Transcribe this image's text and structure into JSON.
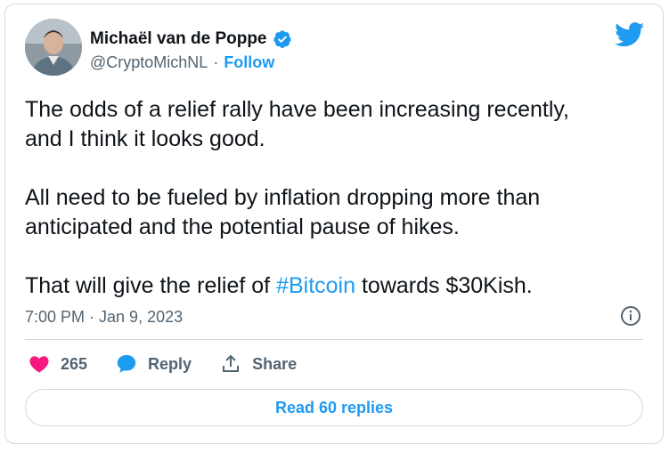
{
  "author": {
    "name": "Michaël van de Poppe",
    "handle": "@CryptoMichNL",
    "separator": "·",
    "follow_label": "Follow"
  },
  "tweet": {
    "line1": "The odds of a relief rally have been increasing recently,",
    "line2": "and I think it looks good.",
    "para2_line1": "All need to be fueled by inflation dropping more than",
    "para2_line2": "anticipated and the potential pause of hikes.",
    "para3_before": "That will give the relief of ",
    "para3_hashtag": "#Bitcoin",
    "para3_after": " towards $30Kish."
  },
  "timestamp": "7:00 PM · Jan 9, 2023",
  "actions": {
    "likes": "265",
    "reply_label": "Reply",
    "share_label": "Share"
  },
  "read_replies_label": "Read 60 replies",
  "colors": {
    "accent": "#1d9bf0",
    "like": "#f91880",
    "muted": "#536471",
    "border": "#cfd9de"
  },
  "icons": [
    "avatar",
    "verified-badge-icon",
    "twitter-bird-icon",
    "info-icon",
    "heart-icon",
    "reply-bubble-icon",
    "share-icon"
  ]
}
